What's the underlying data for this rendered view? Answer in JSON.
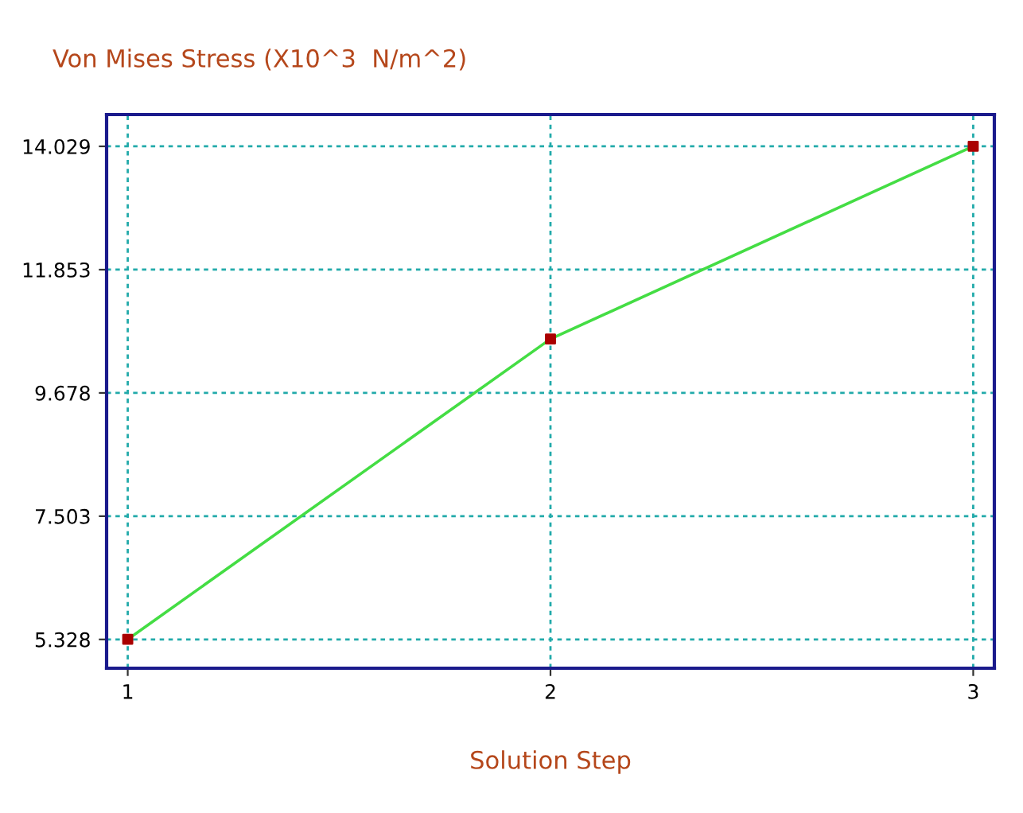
{
  "chart_data": {
    "type": "line",
    "title": "Von Mises Stress (X10^3  N/m^2)",
    "xlabel": "Solution Step",
    "x": [
      1,
      2,
      3
    ],
    "series": [
      {
        "color": "#44dd44",
        "colors": [
          "#aa0000",
          "#aa0000",
          "#aa0000"
        ],
        "values": [
          5.33,
          10.63,
          14.03
        ]
      }
    ],
    "marker": "square",
    "line_style": "solid",
    "xlim": [
      0.95,
      3.05
    ],
    "xticks": [
      1,
      2,
      3
    ],
    "ylim": [
      4.82,
      14.59
    ],
    "yticks": [
      5.328,
      7.503,
      9.678,
      11.853,
      14.029
    ],
    "grid": true
  }
}
